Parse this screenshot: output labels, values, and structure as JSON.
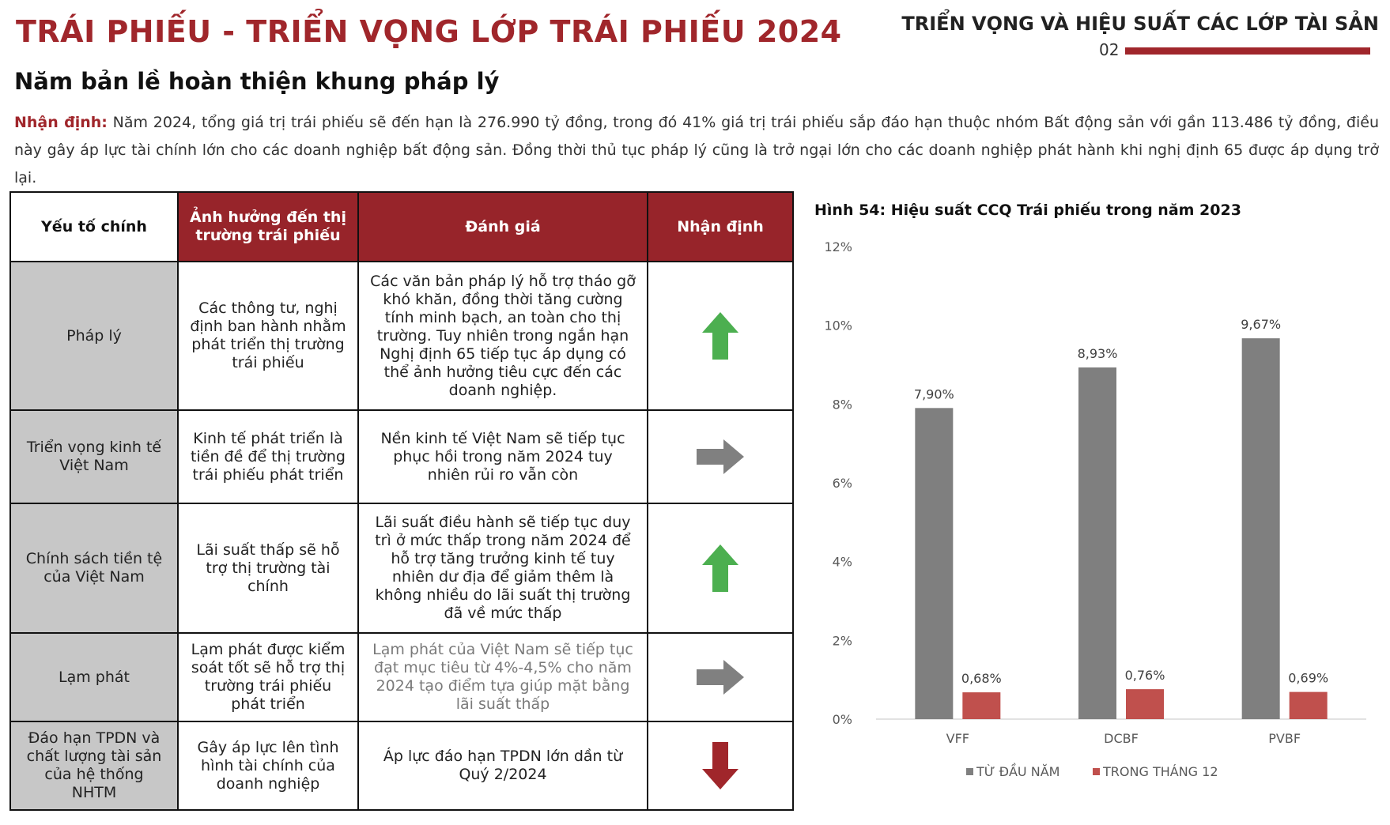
{
  "header": {
    "main_title": "TRÁI PHIẾU - TRIỂN VỌNG LỚP TRÁI PHIẾU 2024",
    "section_title": "TRIỂN VỌNG VÀ HIỆU SUẤT CÁC LỚP TÀI SẢN",
    "page_number": "02"
  },
  "subtitle": "Năm bản lề hoàn thiện khung pháp lý",
  "intro": {
    "lead": "Nhận định:",
    "text": " Năm 2024, tổng giá trị trái phiếu sẽ đến hạn là 276.990 tỷ đồng, trong đó 41% giá trị trái phiếu sắp đáo hạn thuộc nhóm Bất động sản với gần 113.486 tỷ đồng, điều này gây áp lực tài chính lớn cho các doanh nghiệp bất động sản. Đồng thời thủ tục pháp lý cũng là trở ngại lớn cho các doanh nghiệp phát hành khi nghị định 65 được áp dụng trở lại."
  },
  "table": {
    "headers": [
      "Yếu tố chính",
      "Ảnh hưởng đến thị trường trái phiếu",
      "Đánh giá",
      "Nhận định"
    ],
    "rows": [
      {
        "factor": "Pháp lý",
        "impact": "Các thông tư, nghị định ban hành nhằm phát triển thị trường trái phiếu",
        "assessment": "Các văn bản pháp lý hỗ trợ tháo gỡ khó khăn, đồng thời tăng cường tính minh bạch, an toàn cho thị trường. Tuy nhiên trong ngắn hạn Nghị định 65 tiếp tục áp dụng có thể ảnh hưởng tiêu cực đến các doanh nghiệp.",
        "outlook": "up-arrow-icon",
        "color": "#4caf50"
      },
      {
        "factor": "Triển vọng kinh tế Việt Nam",
        "impact": "Kinh tế phát triển là tiền đề để thị trường trái phiếu phát triển",
        "assessment": "Nền kinh tế Việt Nam sẽ tiếp tục phục hồi trong năm 2024 tuy nhiên rủi ro vẫn còn",
        "outlook": "right-arrow-icon",
        "color": "#808080"
      },
      {
        "factor": "Chính sách tiền tệ của Việt Nam",
        "impact": "Lãi suất thấp sẽ hỗ trợ thị trường tài chính",
        "assessment": "Lãi suất điều hành sẽ tiếp tục duy trì ở mức thấp trong năm 2024 để hỗ trợ tăng trưởng kinh tế tuy nhiên dư địa để giảm thêm là không nhiều do lãi suất thị trường đã về mức thấp",
        "outlook": "up-arrow-icon",
        "color": "#4caf50"
      },
      {
        "factor": "Lạm phát",
        "impact": "Lạm phát được kiểm soát tốt sẽ hỗ trợ thị trường trái phiếu phát triển",
        "assessment": "Lạm phát của Việt Nam sẽ tiếp tục đạt mục tiêu  từ 4%-4,5% cho năm 2024 tạo điểm tựa giúp mặt bằng lãi suất thấp",
        "outlook": "right-arrow-icon",
        "color": "#808080"
      },
      {
        "factor": "Đáo hạn TPDN và chất lượng tài sản của hệ thống NHTM",
        "impact": "Gây áp lực lên tình hình tài chính của doanh nghiệp",
        "assessment": "Áp lực đáo hạn TPDN lớn dần từ Quý 2/2024",
        "outlook": "down-arrow-icon",
        "color": "#a0262b"
      }
    ]
  },
  "chart_title": "Hình 54: Hiệu suất CCQ Trái phiếu trong năm 2023",
  "chart_data": {
    "type": "bar",
    "categories": [
      "VFF",
      "DCBF",
      "PVBF"
    ],
    "series": [
      {
        "name": "TỪ ĐẦU NĂM",
        "values": [
          7.9,
          8.93,
          9.67
        ],
        "labels": [
          "7,90%",
          "8,93%",
          "9,67%"
        ],
        "color": "#7f7f7f"
      },
      {
        "name": "TRONG THÁNG 12",
        "values": [
          0.68,
          0.76,
          0.69
        ],
        "labels": [
          "0,68%",
          "0,76%",
          "0,69%"
        ],
        "color": "#c0504d"
      }
    ],
    "ylim": [
      0,
      12
    ],
    "yticks": [
      "0%",
      "2%",
      "4%",
      "6%",
      "8%",
      "10%",
      "12%"
    ],
    "ytick_values": [
      0,
      2,
      4,
      6,
      8,
      10,
      12
    ],
    "grid": false,
    "legend": "bottom",
    "title": "",
    "xlabel": "",
    "ylabel": ""
  }
}
